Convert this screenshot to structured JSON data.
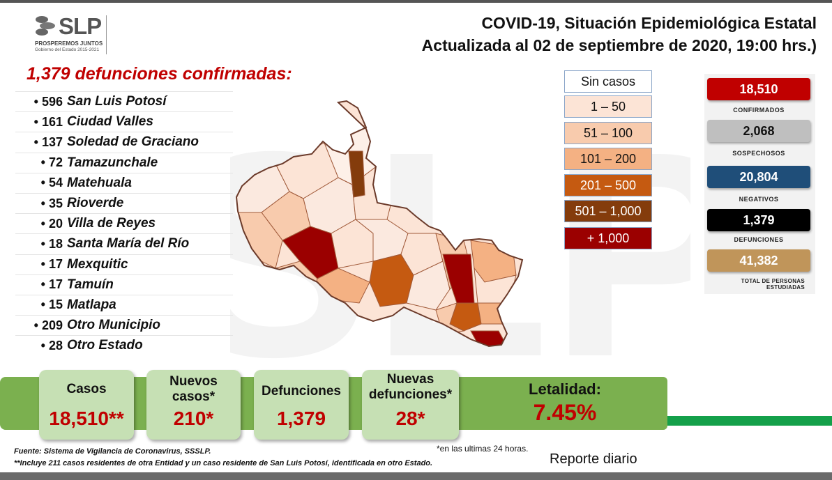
{
  "header": {
    "logo_text": "SLP",
    "logo_sub1": "PROSPEREMOS JUNTOS",
    "logo_sub2": "Gobierno del Estado 2015-2021",
    "title_line1": "COVID-19, Situación Epidemiológica Estatal",
    "title_line2": "Actualizada al 02 de septiembre de 2020, 19:00 hrs.)"
  },
  "deaths": {
    "heading": "1,379 defunciones confirmadas:",
    "rows": [
      {
        "num": "• 596",
        "name": "San Luis Potosí"
      },
      {
        "num": "• 161",
        "name": "Ciudad Valles"
      },
      {
        "num": "• 137",
        "name": "Soledad de Graciano"
      },
      {
        "num": "• 72",
        "name": "Tamazunchale"
      },
      {
        "num": "• 54",
        "name": "Matehuala"
      },
      {
        "num": "• 35",
        "name": "Rioverde"
      },
      {
        "num": "• 20",
        "name": "Villa de Reyes"
      },
      {
        "num": "• 18",
        "name": "Santa María del Río"
      },
      {
        "num": "• 17",
        "name": "Mexquitic"
      },
      {
        "num": "• 17",
        "name": "Tamuín"
      },
      {
        "num": "• 15",
        "name": "Matlapa"
      },
      {
        "num": "• 209",
        "name": "Otro Municipio"
      },
      {
        "num": "• 28",
        "name": "Otro Estado"
      }
    ]
  },
  "legend": [
    {
      "label": "Sin casos",
      "color": "#ffffff",
      "text_color": "#111111"
    },
    {
      "label": "1 – 50",
      "color": "#fce4d6",
      "text_color": "#111111"
    },
    {
      "label": "51 – 100",
      "color": "#f8cbad",
      "text_color": "#111111"
    },
    {
      "label": "101 – 200",
      "color": "#f4b183",
      "text_color": "#111111"
    },
    {
      "label": "201 – 500",
      "color": "#c55a11",
      "text_color": "#ffffff"
    },
    {
      "label": "501 – 1,000",
      "color": "#843c0c",
      "text_color": "#ffffff"
    },
    {
      "label": "+ 1,000",
      "color": "#9b0000",
      "text_color": "#ffffff"
    }
  ],
  "stats": [
    {
      "value": "18,510",
      "label": "CONFIRMADOS",
      "color": "#c00000"
    },
    {
      "value": "2,068",
      "label": "SOSPECHOSOS",
      "color": "#bfbfbf"
    },
    {
      "value": "20,804",
      "label": "NEGATIVOS",
      "color": "#1f4e79"
    },
    {
      "value": "1,379",
      "label": "DEFUNCIONES",
      "color": "#000000"
    },
    {
      "value": "41,382",
      "label": "TOTAL DE PERSONAS",
      "label2": "ESTUDIADAS",
      "color": "#c0955a"
    }
  ],
  "summary": {
    "casos_label": "Casos",
    "casos_value": "18,510**",
    "nuevos_label1": "Nuevos",
    "nuevos_label2": "casos*",
    "nuevos_value": "210*",
    "defunciones_label": "Defunciones",
    "defunciones_value": "1,379",
    "nuevas_def_label1": "Nuevas",
    "nuevas_def_label2": "defunciones*",
    "nuevas_def_value": "28*",
    "letalidad_label": "Letalidad:",
    "letalidad_value": "7.45%"
  },
  "footer": {
    "source": "Fuente: Sistema de Vigilancia de Coronavirus, SSSLP.",
    "note": "**Incluye 211 casos residentes de otra Entidad y un caso residente de San Luis Potosí, identificada en otro Estado.",
    "note_24h": "*en las ultimas 24 horas.",
    "report": "Reporte diario"
  }
}
